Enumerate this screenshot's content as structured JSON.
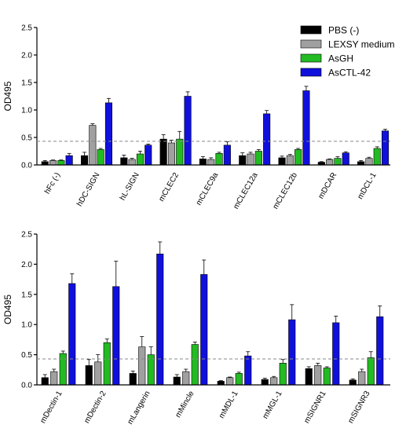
{
  "chart_data": [
    {
      "type": "bar",
      "ylabel": "OD495",
      "ylim": [
        0,
        2.5
      ],
      "yticks": [
        "0.0",
        "0.5",
        "1.0",
        "1.5",
        "2.0",
        "2.5"
      ],
      "threshold": 0.43,
      "categories": [
        "hFc (-)",
        "hDC-SIGN",
        "hL-SIGN",
        "mCLEC2",
        "mCLEC9a",
        "mCLEC12a",
        "mCLEC12b",
        "mDCAR",
        "mDCL-1"
      ],
      "series": [
        {
          "name": "PBS (-)",
          "color": "#000000",
          "values": [
            0.06,
            0.17,
            0.13,
            0.47,
            0.11,
            0.17,
            0.13,
            0.05,
            0.06
          ],
          "errors": [
            0.02,
            0.06,
            0.05,
            0.08,
            0.04,
            0.05,
            0.03,
            0.01,
            0.02
          ]
        },
        {
          "name": "LEXSY medium",
          "color": "#a0a0a0",
          "values": [
            0.08,
            0.72,
            0.1,
            0.4,
            0.1,
            0.2,
            0.17,
            0.1,
            0.12
          ],
          "errors": [
            0.01,
            0.03,
            0.02,
            0.05,
            0.03,
            0.03,
            0.02,
            0.01,
            0.02
          ]
        },
        {
          "name": "AsGH",
          "color": "#22bb22",
          "values": [
            0.08,
            0.28,
            0.2,
            0.47,
            0.21,
            0.25,
            0.28,
            0.12,
            0.3
          ],
          "errors": [
            0.01,
            0.02,
            0.05,
            0.14,
            0.02,
            0.03,
            0.02,
            0.03,
            0.03
          ]
        },
        {
          "name": "AsCTL-42",
          "color": "#1010dd",
          "values": [
            0.17,
            1.13,
            0.36,
            1.25,
            0.36,
            0.93,
            1.35,
            0.22,
            0.62
          ],
          "errors": [
            0.04,
            0.08,
            0.02,
            0.08,
            0.06,
            0.06,
            0.08,
            0.02,
            0.03
          ]
        }
      ]
    },
    {
      "type": "bar",
      "ylabel": "OD495",
      "ylim": [
        0,
        2.5
      ],
      "yticks": [
        "0.0",
        "0.5",
        "1.0",
        "1.5",
        "2.0",
        "2.5"
      ],
      "threshold": 0.43,
      "categories": [
        "mDectin-1",
        "mDectin-2",
        "mLangerin",
        "mMincle",
        "mMDL-1",
        "mMGL-1",
        "mSIGNR1",
        "mSIGNR3"
      ],
      "series": [
        {
          "name": "PBS (-)",
          "color": "#000000",
          "values": [
            0.12,
            0.32,
            0.19,
            0.13,
            0.06,
            0.09,
            0.27,
            0.08
          ],
          "errors": [
            0.05,
            0.1,
            0.04,
            0.04,
            0.01,
            0.02,
            0.03,
            0.02
          ]
        },
        {
          "name": "LEXSY medium",
          "color": "#a0a0a0",
          "values": [
            0.22,
            0.38,
            0.63,
            0.22,
            0.12,
            0.12,
            0.32,
            0.22
          ],
          "errors": [
            0.04,
            0.12,
            0.17,
            0.04,
            0.01,
            0.02,
            0.04,
            0.04
          ]
        },
        {
          "name": "AsGH",
          "color": "#22bb22",
          "values": [
            0.52,
            0.7,
            0.5,
            0.67,
            0.19,
            0.36,
            0.28,
            0.45
          ],
          "errors": [
            0.04,
            0.06,
            0.13,
            0.04,
            0.02,
            0.06,
            0.02,
            0.1
          ]
        },
        {
          "name": "AsCTL-42",
          "color": "#1010dd",
          "values": [
            1.68,
            1.63,
            2.17,
            1.83,
            0.48,
            1.08,
            1.03,
            1.13
          ],
          "errors": [
            0.16,
            0.42,
            0.2,
            0.24,
            0.07,
            0.25,
            0.11,
            0.18
          ]
        }
      ]
    }
  ],
  "legend": {
    "placement": "top-right",
    "entries": [
      {
        "label": "PBS (-)",
        "color": "#000000"
      },
      {
        "label": "LEXSY medium",
        "color": "#a0a0a0"
      },
      {
        "label": "AsGH",
        "color": "#22bb22"
      },
      {
        "label": "AsCTL-42",
        "color": "#1010dd"
      }
    ]
  }
}
